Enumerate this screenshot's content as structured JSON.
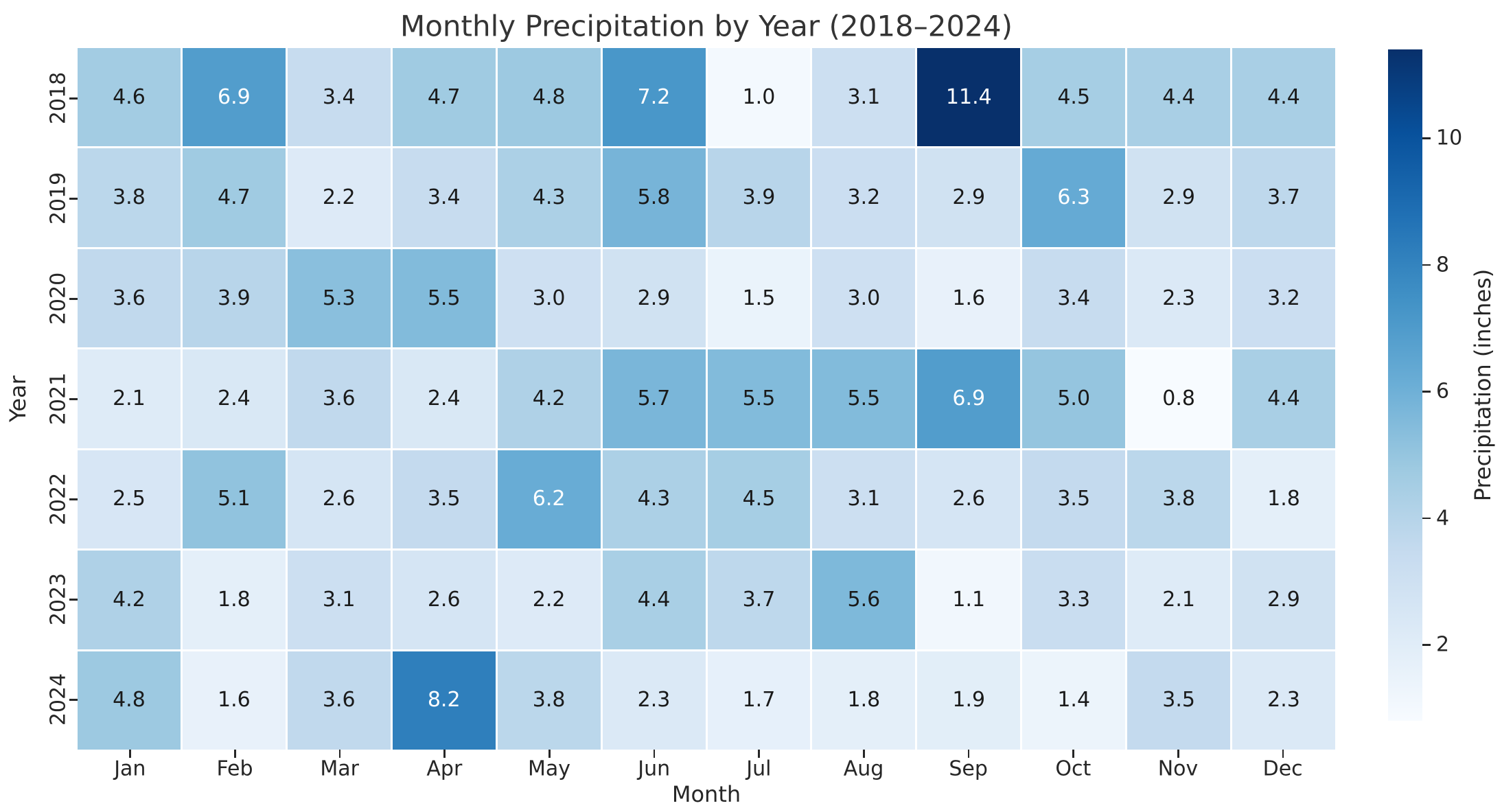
{
  "chart_data": {
    "type": "heatmap",
    "title": "Monthly Precipitation by Year (2018–2024)",
    "xlabel": "Month",
    "ylabel": "Year",
    "x_categories": [
      "Jan",
      "Feb",
      "Mar",
      "Apr",
      "May",
      "Jun",
      "Jul",
      "Aug",
      "Sep",
      "Oct",
      "Nov",
      "Dec"
    ],
    "y_categories": [
      "2018",
      "2019",
      "2020",
      "2021",
      "2022",
      "2023",
      "2024"
    ],
    "values": [
      [
        4.6,
        6.9,
        3.4,
        4.7,
        4.8,
        7.2,
        1.0,
        3.1,
        11.4,
        4.5,
        4.4,
        4.4
      ],
      [
        3.8,
        4.7,
        2.2,
        3.4,
        4.3,
        5.8,
        3.9,
        3.2,
        2.9,
        6.3,
        2.9,
        3.7
      ],
      [
        3.6,
        3.9,
        5.3,
        5.5,
        3.0,
        2.9,
        1.5,
        3.0,
        1.6,
        3.4,
        2.3,
        3.2
      ],
      [
        2.1,
        2.4,
        3.6,
        2.4,
        4.2,
        5.7,
        5.5,
        5.5,
        6.9,
        5.0,
        0.8,
        4.4
      ],
      [
        2.5,
        5.1,
        2.6,
        3.5,
        6.2,
        4.3,
        4.5,
        3.1,
        2.6,
        3.5,
        3.8,
        1.8
      ],
      [
        4.2,
        1.8,
        3.1,
        2.6,
        2.2,
        4.4,
        3.7,
        5.6,
        1.1,
        3.3,
        2.1,
        2.9
      ],
      [
        4.8,
        1.6,
        3.6,
        8.2,
        3.8,
        2.3,
        1.7,
        1.8,
        1.9,
        1.4,
        3.5,
        2.3
      ]
    ],
    "value_format_decimals": 1,
    "vmin": 0.8,
    "vmax": 11.4,
    "colormap": "Blues",
    "grid": false,
    "colorbar": {
      "label": "Precipitation (inches)",
      "ticks": [
        2,
        4,
        6,
        8,
        10
      ],
      "position": "right"
    }
  },
  "colors": {
    "cmap_stops": [
      "#f7fbff",
      "#deebf7",
      "#c6dbef",
      "#9ecae1",
      "#6baed6",
      "#4292c6",
      "#2171b5",
      "#08519c",
      "#08306b"
    ],
    "annot_dark": "#1a1a1a",
    "annot_light": "#ffffff",
    "tick_text": "#262626",
    "title_text": "#343434",
    "background": "#ffffff"
  }
}
